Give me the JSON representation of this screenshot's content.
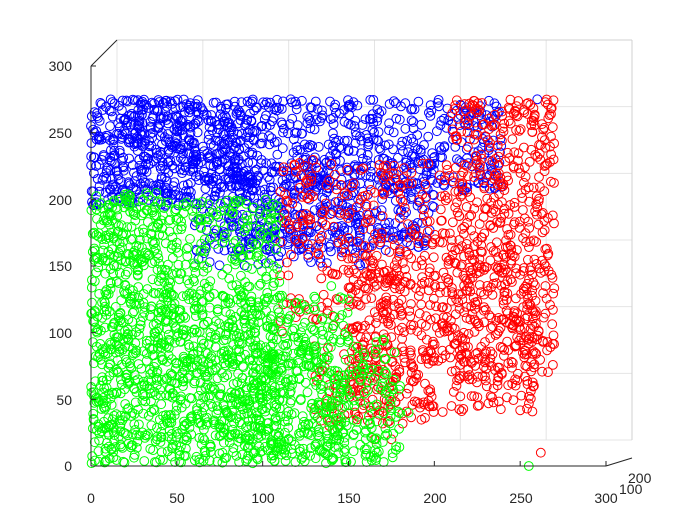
{
  "chart_data": {
    "type": "scatter",
    "projection": "3d",
    "title": "",
    "xlabel": "",
    "ylabel": "",
    "zlabel": "",
    "grid": true,
    "legend": null,
    "x_ticks": [
      0,
      50,
      100,
      150,
      200,
      250,
      300
    ],
    "y_ticks": [
      0,
      50,
      100,
      150,
      200,
      250,
      300
    ],
    "depth_ticks": [
      100,
      200
    ],
    "xlim": [
      0,
      300
    ],
    "ylim": [
      0,
      300
    ],
    "marker": "o",
    "series": [
      {
        "color": "#0000ff",
        "regions": [
          {
            "x": [
              0,
              95
            ],
            "y": [
              195,
              275
            ],
            "count": 380
          },
          {
            "x": [
              10,
              240
            ],
            "y": [
              205,
              275
            ],
            "count": 700
          },
          {
            "x": [
              80,
              200
            ],
            "y": [
              160,
              230
            ],
            "count": 320
          },
          {
            "x": [
              60,
              160
            ],
            "y": [
              150,
              200
            ],
            "count": 160
          }
        ],
        "points": [
          [
            0,
            255
          ],
          [
            2,
            250
          ],
          [
            3,
            225
          ],
          [
            5,
            210
          ],
          [
            10,
            200
          ],
          [
            260,
            275
          ],
          [
            235,
            272
          ]
        ]
      },
      {
        "color": "#ff0000",
        "regions": [
          {
            "x": [
              210,
              270
            ],
            "y": [
              60,
              275
            ],
            "count": 520
          },
          {
            "x": [
              150,
              260
            ],
            "y": [
              40,
              160
            ],
            "count": 380
          },
          {
            "x": [
              110,
              210
            ],
            "y": [
              100,
              230
            ],
            "count": 300
          },
          {
            "x": [
              130,
              200
            ],
            "y": [
              30,
              90
            ],
            "count": 110
          }
        ],
        "points": [
          [
            165,
            20
          ],
          [
            175,
            20
          ],
          [
            155,
            35
          ],
          [
            210,
            45
          ],
          [
            262,
            10
          ]
        ]
      },
      {
        "color": "#00ff00",
        "regions": [
          {
            "x": [
              0,
              110
            ],
            "y": [
              2,
              200
            ],
            "count": 800
          },
          {
            "x": [
              0,
              150
            ],
            "y": [
              2,
              130
            ],
            "count": 650
          },
          {
            "x": [
              90,
              180
            ],
            "y": [
              2,
              95
            ],
            "count": 320
          },
          {
            "x": [
              0,
              40
            ],
            "y": [
              150,
              205
            ],
            "count": 100
          }
        ],
        "points": [
          [
            160,
            20
          ],
          [
            170,
            18
          ],
          [
            255,
            0
          ],
          [
            180,
            60
          ],
          [
            185,
            40
          ],
          [
            150,
            125
          ],
          [
            140,
            135
          ]
        ]
      }
    ]
  }
}
